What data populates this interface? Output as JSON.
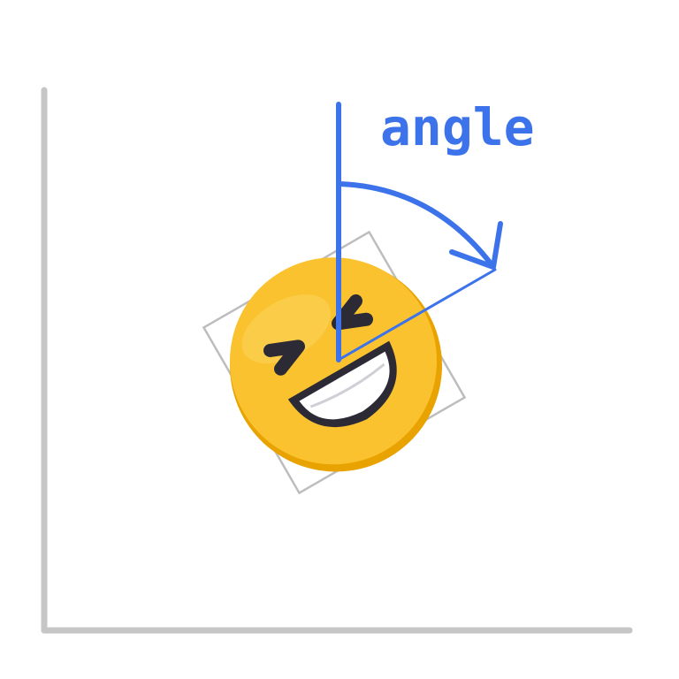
{
  "diagram": {
    "angle_label": "angle",
    "icon": "grinning-squinting-face-emoji-icon",
    "colors": {
      "accent": "#3d73ea",
      "axis": "#c6c6c6",
      "frame": "#bdbdbd",
      "face": "#f9c22e",
      "face_shadow": "#e9a300",
      "features": "#2b2a35"
    }
  }
}
